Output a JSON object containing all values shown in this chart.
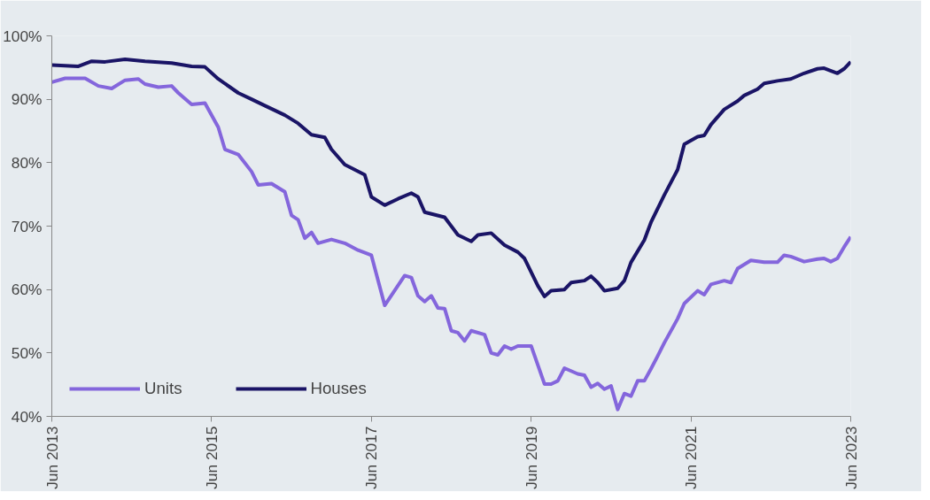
{
  "chart_data": {
    "type": "line",
    "ylim": [
      40,
      100
    ],
    "yticks": [
      {
        "value": 40,
        "label": "40%"
      },
      {
        "value": 50,
        "label": "50%"
      },
      {
        "value": 60,
        "label": "60%"
      },
      {
        "value": 70,
        "label": "70%"
      },
      {
        "value": 80,
        "label": "80%"
      },
      {
        "value": 90,
        "label": "90%"
      },
      {
        "value": 100,
        "label": "100%"
      }
    ],
    "xlim": [
      "2013-06",
      "2023-06"
    ],
    "xticks": [
      {
        "value": "2013-06",
        "label": "Jun 2013"
      },
      {
        "value": "2015-06",
        "label": "Jun 2015"
      },
      {
        "value": "2017-06",
        "label": "Jun 2017"
      },
      {
        "value": "2019-06",
        "label": "Jun 2019"
      },
      {
        "value": "2021-06",
        "label": "Jun 2021"
      },
      {
        "value": "2023-06",
        "label": "Jun 2023"
      }
    ],
    "grid": false,
    "legend": "bottom left",
    "line_style": "solid",
    "marker": "none",
    "series": [
      {
        "name": "Units",
        "color": "#8466dc",
        "x": [
          "2013-06",
          "2013-08",
          "2013-11",
          "2014-01",
          "2014-03",
          "2014-05",
          "2014-07",
          "2014-08",
          "2014-10",
          "2014-12",
          "2015-01",
          "2015-03",
          "2015-05",
          "2015-07",
          "2015-08",
          "2015-10",
          "2015-12",
          "2016-01",
          "2016-03",
          "2016-05",
          "2016-06",
          "2016-07",
          "2016-08",
          "2016-09",
          "2016-10",
          "2016-12",
          "2017-02",
          "2017-04",
          "2017-06",
          "2017-08",
          "2017-11",
          "2017-12",
          "2018-01",
          "2018-02",
          "2018-03",
          "2018-04",
          "2018-05",
          "2018-06",
          "2018-07",
          "2018-08",
          "2018-09",
          "2018-11",
          "2018-12",
          "2019-01",
          "2019-02",
          "2019-03",
          "2019-04",
          "2019-06",
          "2019-08",
          "2019-09",
          "2019-10",
          "2019-11",
          "2020-01",
          "2020-02",
          "2020-03",
          "2020-04",
          "2020-05",
          "2020-06",
          "2020-07",
          "2020-08",
          "2020-09",
          "2020-10",
          "2020-11",
          "2020-12",
          "2021-01",
          "2021-02",
          "2021-04",
          "2021-05",
          "2021-07",
          "2021-08",
          "2021-09",
          "2021-11",
          "2021-12",
          "2022-01",
          "2022-03",
          "2022-05",
          "2022-07",
          "2022-08",
          "2022-09",
          "2022-11",
          "2023-01",
          "2023-02",
          "2023-03",
          "2023-04",
          "2023-05",
          "2023-06"
        ],
        "values": [
          92.7,
          93.3,
          93.3,
          92.1,
          91.7,
          93.0,
          93.2,
          92.4,
          91.9,
          92.1,
          91.0,
          89.2,
          89.4,
          85.6,
          82.1,
          81.3,
          78.6,
          76.5,
          76.7,
          75.4,
          71.7,
          71.0,
          68.1,
          69.0,
          67.3,
          67.9,
          67.3,
          66.2,
          65.4,
          57.5,
          62.2,
          61.9,
          59.0,
          58.1,
          59.0,
          57.1,
          57.0,
          53.5,
          53.2,
          51.9,
          53.5,
          52.9,
          50.0,
          49.7,
          51.1,
          50.6,
          51.1,
          51.1,
          45.1,
          45.1,
          45.6,
          47.6,
          46.7,
          46.5,
          44.6,
          45.2,
          44.3,
          44.8,
          41.1,
          43.6,
          43.2,
          45.6,
          45.6,
          47.5,
          49.5,
          51.6,
          55.4,
          57.8,
          59.8,
          59.2,
          60.8,
          61.4,
          61.1,
          63.3,
          64.6,
          64.3,
          64.3,
          65.4,
          65.2,
          64.4,
          64.8,
          64.9,
          64.4,
          64.9,
          66.7,
          68.3
        ]
      },
      {
        "name": "Houses",
        "color": "#1a1466",
        "x": [
          "2013-06",
          "2013-10",
          "2013-12",
          "2014-02",
          "2014-05",
          "2014-08",
          "2014-12",
          "2015-03",
          "2015-05",
          "2015-07",
          "2015-10",
          "2015-12",
          "2016-02",
          "2016-05",
          "2016-07",
          "2016-09",
          "2016-11",
          "2016-12",
          "2017-02",
          "2017-05",
          "2017-06",
          "2017-08",
          "2017-10",
          "2017-12",
          "2018-01",
          "2018-02",
          "2018-05",
          "2018-07",
          "2018-09",
          "2018-10",
          "2018-12",
          "2019-02",
          "2019-04",
          "2019-05",
          "2019-07",
          "2019-08",
          "2019-09",
          "2019-11",
          "2019-12",
          "2020-02",
          "2020-03",
          "2020-04",
          "2020-05",
          "2020-07",
          "2020-08",
          "2020-09",
          "2020-11",
          "2020-12",
          "2021-02",
          "2021-04",
          "2021-05",
          "2021-07",
          "2021-08",
          "2021-09",
          "2021-11",
          "2022-01",
          "2022-02",
          "2022-04",
          "2022-05",
          "2022-07",
          "2022-09",
          "2022-11",
          "2023-01",
          "2023-02",
          "2023-04",
          "2023-05",
          "2023-06"
        ],
        "values": [
          95.4,
          95.2,
          96.0,
          95.9,
          96.3,
          96.0,
          95.7,
          95.2,
          95.1,
          93.2,
          91.0,
          90.0,
          89.0,
          87.5,
          86.2,
          84.4,
          84.0,
          82.1,
          79.7,
          78.1,
          74.6,
          73.3,
          74.3,
          75.2,
          74.6,
          72.2,
          71.4,
          68.6,
          67.6,
          68.6,
          68.9,
          67.0,
          65.9,
          64.9,
          60.6,
          58.9,
          59.8,
          60.0,
          61.1,
          61.4,
          62.1,
          61.1,
          59.8,
          60.2,
          61.4,
          64.3,
          67.8,
          70.6,
          74.9,
          78.9,
          82.9,
          84.1,
          84.3,
          86.0,
          88.4,
          89.7,
          90.6,
          91.6,
          92.5,
          92.9,
          93.2,
          94.1,
          94.8,
          94.9,
          94.1,
          94.8,
          95.9
        ]
      }
    ]
  }
}
